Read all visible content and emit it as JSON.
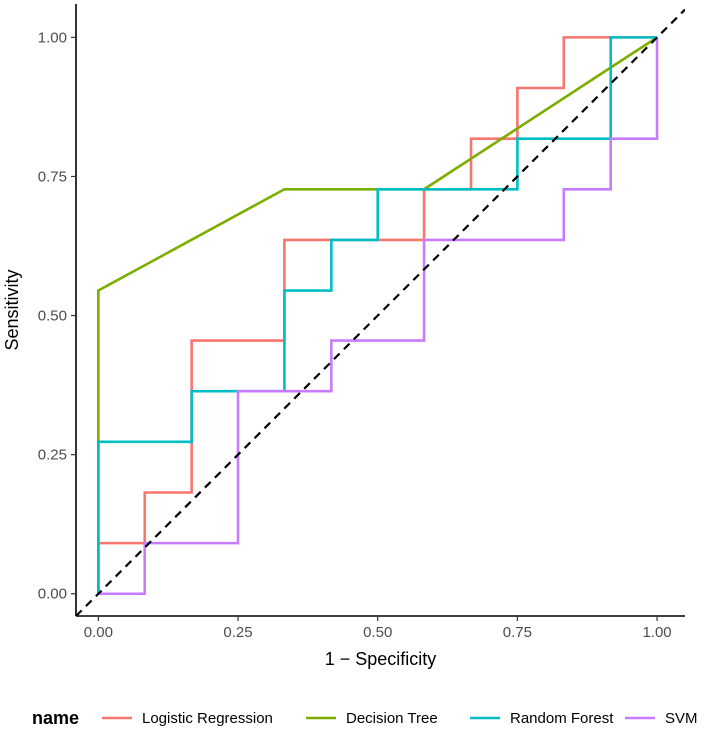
{
  "chart_data": {
    "type": "line",
    "xlabel": "1 − Specificity",
    "ylabel": "Sensitivity",
    "xlim": [
      -0.04,
      1.05
    ],
    "ylim": [
      -0.04,
      1.06
    ],
    "x_ticks": [
      0.0,
      0.25,
      0.5,
      0.75,
      1.0
    ],
    "x_tick_labels": [
      "0.00",
      "0.25",
      "0.50",
      "0.75",
      "1.00"
    ],
    "y_ticks": [
      0.0,
      0.25,
      0.5,
      0.75,
      1.0
    ],
    "y_tick_labels": [
      "0.00",
      "0.25",
      "0.50",
      "0.75",
      "1.00"
    ],
    "grid": false,
    "legend": {
      "title": "name",
      "position": "bottom"
    },
    "reference_line": {
      "style": "dashed",
      "color": "#000000",
      "x": [
        -0.04,
        1.05
      ],
      "y": [
        -0.04,
        1.05
      ]
    },
    "series": [
      {
        "name": "Logistic Regression",
        "color": "#F8766D",
        "x": [
          0.0,
          0.0,
          0.083,
          0.083,
          0.167,
          0.167,
          0.333,
          0.333,
          0.583,
          0.583,
          0.667,
          0.667,
          0.75,
          0.75,
          0.833,
          0.833,
          1.0
        ],
        "y": [
          0.0,
          0.091,
          0.091,
          0.182,
          0.182,
          0.455,
          0.455,
          0.636,
          0.636,
          0.727,
          0.727,
          0.818,
          0.818,
          0.909,
          0.909,
          1.0,
          1.0
        ]
      },
      {
        "name": "Decision Tree",
        "color": "#7CAE00",
        "x": [
          0.0,
          0.0,
          0.333,
          0.583,
          1.0
        ],
        "y": [
          0.0,
          0.545,
          0.727,
          0.727,
          1.0
        ]
      },
      {
        "name": "Random Forest",
        "color": "#00BFC4",
        "x": [
          0.0,
          0.0,
          0.167,
          0.167,
          0.333,
          0.333,
          0.417,
          0.417,
          0.5,
          0.5,
          0.75,
          0.75,
          0.917,
          0.917,
          1.0
        ],
        "y": [
          0.0,
          0.273,
          0.273,
          0.364,
          0.364,
          0.545,
          0.545,
          0.636,
          0.636,
          0.727,
          0.727,
          0.818,
          0.818,
          1.0,
          1.0
        ]
      },
      {
        "name": "SVM",
        "color": "#C77CFF",
        "x": [
          0.0,
          0.083,
          0.083,
          0.25,
          0.25,
          0.417,
          0.417,
          0.583,
          0.583,
          0.833,
          0.833,
          0.917,
          0.917,
          1.0,
          1.0
        ],
        "y": [
          0.0,
          0.0,
          0.091,
          0.091,
          0.364,
          0.364,
          0.455,
          0.455,
          0.636,
          0.636,
          0.727,
          0.727,
          0.818,
          0.818,
          1.0
        ]
      }
    ]
  }
}
